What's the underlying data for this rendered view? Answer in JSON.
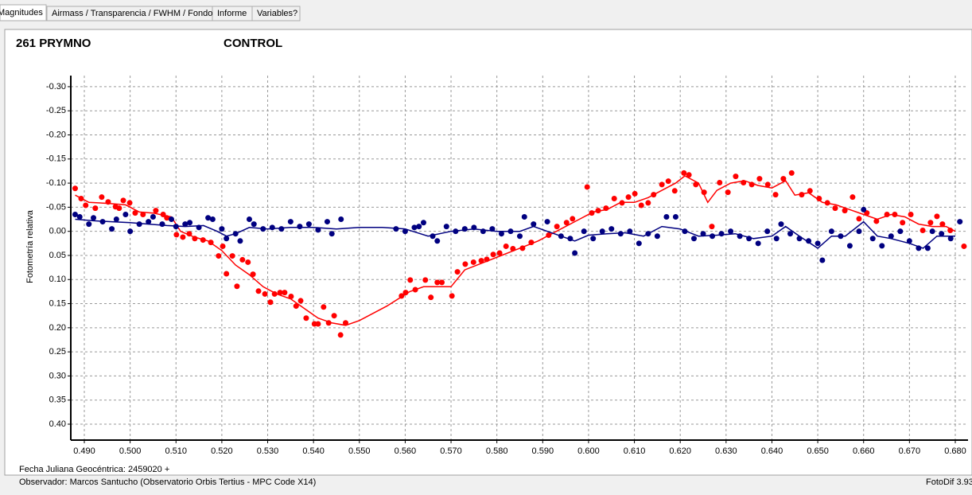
{
  "tabs": [
    "Magnitudes",
    "Airmass / Transparencia / FWHM / Fondo",
    "Informe",
    "Variables?"
  ],
  "footer": {
    "date": "Fecha Juliana Geocéntrica: 2459020 +",
    "observer": "Observador: Marcos Santucho (Observatorio Orbis Tertius - MPC Code X14)",
    "version": "FotoDif 3.93"
  },
  "chart_data": {
    "type": "scatter",
    "y_label": "Fotometría relativa",
    "grid": true,
    "y_inverted": true,
    "xlim": [
      0.48705,
      0.68278
    ],
    "ylim": [
      -0.323,
      0.433
    ],
    "xticks": [
      {
        "value": 0.49,
        "label": "0.490"
      },
      {
        "value": 0.5,
        "label": "0.500"
      },
      {
        "value": 0.51,
        "label": "0.510"
      },
      {
        "value": 0.52,
        "label": "0.520"
      },
      {
        "value": 0.53,
        "label": "0.530"
      },
      {
        "value": 0.54,
        "label": "0.540"
      },
      {
        "value": 0.55,
        "label": "0.550"
      },
      {
        "value": 0.56,
        "label": "0.560"
      },
      {
        "value": 0.57,
        "label": "0.570"
      },
      {
        "value": 0.58,
        "label": "0.580"
      },
      {
        "value": 0.59,
        "label": "0.590"
      },
      {
        "value": 0.6,
        "label": "0.600"
      },
      {
        "value": 0.61,
        "label": "0.610"
      },
      {
        "value": 0.62,
        "label": "0.620"
      },
      {
        "value": 0.63,
        "label": "0.630"
      },
      {
        "value": 0.64,
        "label": "0.640"
      },
      {
        "value": 0.65,
        "label": "0.650"
      },
      {
        "value": 0.66,
        "label": "0.660"
      },
      {
        "value": 0.67,
        "label": "0.670"
      },
      {
        "value": 0.68,
        "label": "0.680"
      }
    ],
    "yticks": [
      {
        "value": -0.3,
        "label": "-0.30"
      },
      -0.25,
      {
        "value": -0.2,
        "label": "-0.20"
      },
      -0.15,
      {
        "value": -0.1,
        "label": "-0.10"
      },
      -0.05,
      {
        "value": 0,
        "label": "0.00"
      },
      0.05,
      {
        "value": 0.1,
        "label": "0.10"
      },
      0.15,
      {
        "value": 0.2,
        "label": "0.20"
      },
      0.25,
      {
        "value": 0.3,
        "label": "0.30"
      },
      0.35,
      {
        "value": 0.4,
        "label": "0.40"
      }
    ],
    "series": [
      {
        "name": "261 PRYMNO",
        "color": "#ff0000",
        "x": [
          0.488,
          0.4893,
          0.4903,
          0.4924,
          0.4938,
          0.4952,
          0.4968,
          0.4976,
          0.4985,
          0.4999,
          0.5011,
          0.5028,
          0.5056,
          0.5072,
          0.508,
          0.5101,
          0.5115,
          0.5129,
          0.5141,
          0.5159,
          0.5176,
          0.5193,
          0.5202,
          0.521,
          0.5223,
          0.5233,
          0.5245,
          0.5257,
          0.5268,
          0.528,
          0.5294,
          0.5306,
          0.5315,
          0.5327,
          0.5337,
          0.5351,
          0.5362,
          0.5372,
          0.5384,
          0.5402,
          0.541,
          0.5422,
          0.5433,
          0.5445,
          0.5459,
          0.547,
          0.5592,
          0.5601,
          0.5611,
          0.5622,
          0.5644,
          0.5656,
          0.567,
          0.568,
          0.5702,
          0.5714,
          0.5731,
          0.5749,
          0.5766,
          0.5778,
          0.5792,
          0.5806,
          0.582,
          0.5835,
          0.5856,
          0.5875,
          0.5913,
          0.5931,
          0.5952,
          0.5965,
          0.5997,
          0.6007,
          0.6021,
          0.6038,
          0.6056,
          0.6073,
          0.6087,
          0.6101,
          0.6115,
          0.613,
          0.6142,
          0.616,
          0.6174,
          0.6188,
          0.6208,
          0.6219,
          0.6234,
          0.6252,
          0.6269,
          0.6286,
          0.6304,
          0.6321,
          0.6338,
          0.6356,
          0.6373,
          0.6391,
          0.6408,
          0.6425,
          0.6443,
          0.6465,
          0.6483,
          0.6503,
          0.6521,
          0.6538,
          0.6559,
          0.6576,
          0.659,
          0.6607,
          0.6628,
          0.6651,
          0.6668,
          0.6685,
          0.6703,
          0.6729,
          0.6746,
          0.676,
          0.6772,
          0.6789,
          0.6819
        ],
        "values": [
          -0.089,
          -0.068,
          -0.054,
          -0.048,
          -0.071,
          -0.061,
          -0.051,
          -0.048,
          -0.064,
          -0.059,
          -0.038,
          -0.035,
          -0.043,
          -0.035,
          -0.028,
          0.007,
          0.012,
          0.005,
          0.015,
          0.018,
          0.023,
          0.051,
          0.031,
          0.088,
          0.051,
          0.114,
          0.059,
          0.064,
          0.089,
          0.124,
          0.13,
          0.147,
          0.13,
          0.127,
          0.127,
          0.135,
          0.155,
          0.144,
          0.18,
          0.192,
          0.192,
          0.157,
          0.19,
          0.175,
          0.215,
          0.19,
          0.134,
          0.127,
          0.101,
          0.121,
          0.101,
          0.137,
          0.106,
          0.106,
          0.134,
          0.084,
          0.068,
          0.064,
          0.061,
          0.058,
          0.048,
          0.045,
          0.031,
          0.036,
          0.035,
          0.023,
          0.008,
          -0.01,
          -0.018,
          -0.026,
          -0.092,
          -0.038,
          -0.043,
          -0.048,
          -0.068,
          -0.059,
          -0.071,
          -0.078,
          -0.054,
          -0.059,
          -0.076,
          -0.097,
          -0.104,
          -0.084,
          -0.121,
          -0.117,
          -0.097,
          -0.081,
          -0.01,
          -0.101,
          -0.081,
          -0.114,
          -0.101,
          -0.097,
          -0.109,
          -0.097,
          -0.076,
          -0.109,
          -0.121,
          -0.076,
          -0.084,
          -0.068,
          -0.059,
          -0.048,
          -0.043,
          -0.071,
          -0.026,
          -0.038,
          -0.021,
          -0.035,
          -0.035,
          -0.018,
          -0.035,
          -0.002,
          -0.018,
          -0.031,
          -0.015,
          -0.002,
          0.031
        ],
        "line_x": [
          0.488,
          0.491,
          0.495,
          0.499,
          0.502,
          0.505,
          0.509,
          0.511,
          0.514,
          0.517,
          0.52,
          0.523,
          0.526,
          0.529,
          0.532,
          0.535,
          0.538,
          0.541,
          0.544,
          0.547,
          0.55,
          0.556,
          0.561,
          0.564,
          0.57,
          0.573,
          0.577,
          0.581,
          0.585,
          0.589,
          0.592,
          0.595,
          0.598,
          0.601,
          0.604,
          0.607,
          0.61,
          0.613,
          0.616,
          0.619,
          0.621,
          0.624,
          0.626,
          0.628,
          0.631,
          0.634,
          0.637,
          0.64,
          0.643,
          0.645,
          0.648,
          0.651,
          0.654,
          0.657,
          0.66,
          0.663,
          0.666,
          0.669,
          0.672,
          0.675,
          0.678,
          0.68
        ],
        "line_values": [
          -0.075,
          -0.06,
          -0.058,
          -0.055,
          -0.04,
          -0.038,
          -0.03,
          0,
          0.012,
          0.02,
          0.04,
          0.07,
          0.09,
          0.115,
          0.13,
          0.14,
          0.16,
          0.18,
          0.19,
          0.195,
          0.185,
          0.155,
          0.125,
          0.115,
          0.115,
          0.08,
          0.065,
          0.05,
          0.035,
          0.02,
          0.005,
          -0.01,
          -0.025,
          -0.04,
          -0.045,
          -0.06,
          -0.06,
          -0.07,
          -0.085,
          -0.1,
          -0.115,
          -0.1,
          -0.06,
          -0.085,
          -0.1,
          -0.105,
          -0.095,
          -0.09,
          -0.105,
          -0.075,
          -0.08,
          -0.06,
          -0.055,
          -0.045,
          -0.035,
          -0.025,
          -0.035,
          -0.03,
          -0.015,
          -0.01,
          -0.01,
          0
        ]
      },
      {
        "name": "CONTROL",
        "color": "#000080",
        "x": [
          0.488,
          0.489,
          0.491,
          0.492,
          0.494,
          0.496,
          0.497,
          0.499,
          0.5,
          0.502,
          0.504,
          0.505,
          0.507,
          0.509,
          0.51,
          0.512,
          0.513,
          0.515,
          0.517,
          0.518,
          0.52,
          0.521,
          0.523,
          0.524,
          0.526,
          0.527,
          0.529,
          0.531,
          0.533,
          0.535,
          0.537,
          0.539,
          0.541,
          0.543,
          0.544,
          0.546,
          0.558,
          0.56,
          0.562,
          0.563,
          0.564,
          0.566,
          0.567,
          0.569,
          0.571,
          0.573,
          0.575,
          0.577,
          0.579,
          0.581,
          0.583,
          0.585,
          0.586,
          0.588,
          0.591,
          0.594,
          0.596,
          0.597,
          0.599,
          0.601,
          0.603,
          0.605,
          0.607,
          0.609,
          0.611,
          0.613,
          0.615,
          0.617,
          0.619,
          0.621,
          0.623,
          0.625,
          0.627,
          0.629,
          0.631,
          0.633,
          0.635,
          0.637,
          0.639,
          0.641,
          0.642,
          0.644,
          0.646,
          0.648,
          0.65,
          0.651,
          0.653,
          0.655,
          0.657,
          0.659,
          0.66,
          0.662,
          0.664,
          0.666,
          0.668,
          0.67,
          0.672,
          0.674,
          0.675,
          0.677,
          0.679,
          0.681
        ],
        "values": [
          -0.035,
          -0.03,
          -0.015,
          -0.028,
          -0.02,
          -0.005,
          -0.025,
          -0.035,
          0,
          -0.015,
          -0.02,
          -0.03,
          -0.015,
          -0.025,
          -0.01,
          -0.015,
          -0.018,
          -0.008,
          -0.028,
          -0.025,
          -0.005,
          0.015,
          0.005,
          0.02,
          -0.025,
          -0.015,
          -0.005,
          -0.008,
          -0.005,
          -0.02,
          -0.01,
          -0.015,
          -0.003,
          -0.02,
          0.005,
          -0.025,
          -0.005,
          0,
          -0.008,
          -0.01,
          -0.018,
          0.01,
          0.02,
          -0.01,
          0,
          -0.005,
          -0.008,
          0,
          -0.005,
          0.005,
          0,
          0.01,
          -0.03,
          -0.015,
          -0.02,
          0.01,
          0.015,
          0.045,
          0,
          0.015,
          0,
          -0.005,
          0.005,
          0,
          0.025,
          0.005,
          0.01,
          -0.03,
          -0.03,
          0,
          0.015,
          0.005,
          0.01,
          0.005,
          0,
          0.01,
          0.015,
          0.025,
          0,
          0.015,
          -0.015,
          0.005,
          0.015,
          0.02,
          0.025,
          0.06,
          0,
          0.01,
          0.03,
          0,
          -0.045,
          0.015,
          0.03,
          0.01,
          0,
          0.02,
          0.035,
          0.035,
          0,
          0.005,
          0.015,
          -0.02
        ],
        "line_x": [
          0.488,
          0.492,
          0.496,
          0.5,
          0.504,
          0.508,
          0.512,
          0.516,
          0.519,
          0.521,
          0.523,
          0.526,
          0.53,
          0.535,
          0.54,
          0.545,
          0.55,
          0.555,
          0.56,
          0.565,
          0.57,
          0.575,
          0.58,
          0.585,
          0.588,
          0.591,
          0.594,
          0.597,
          0.6,
          0.604,
          0.608,
          0.612,
          0.616,
          0.62,
          0.624,
          0.628,
          0.632,
          0.636,
          0.64,
          0.643,
          0.646,
          0.65,
          0.653,
          0.656,
          0.66,
          0.663,
          0.666,
          0.67,
          0.673,
          0.676,
          0.68
        ],
        "line_values": [
          -0.025,
          -0.022,
          -0.02,
          -0.018,
          -0.015,
          -0.012,
          -0.01,
          -0.012,
          0,
          0.01,
          0.005,
          -0.008,
          -0.005,
          -0.008,
          -0.008,
          -0.005,
          -0.008,
          -0.008,
          -0.005,
          0.01,
          0,
          -0.005,
          0,
          0,
          -0.01,
          0,
          0.01,
          0.02,
          0.008,
          0.005,
          0.003,
          0.01,
          -0.01,
          -0.005,
          0.01,
          0.008,
          0.005,
          0.015,
          0.01,
          -0.01,
          0.01,
          0.035,
          0.01,
          0.01,
          -0.02,
          0.01,
          0.015,
          0.025,
          0.035,
          0.01,
          0.01
        ]
      }
    ]
  }
}
